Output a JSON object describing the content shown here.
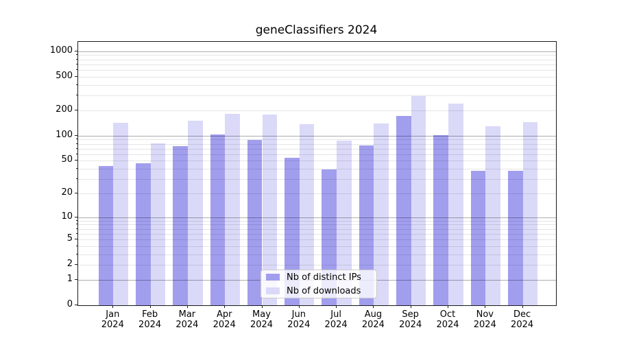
{
  "title": "geneClassifiers 2024",
  "chart_data": {
    "type": "bar",
    "title": "geneClassifiers 2024",
    "xlabel": "",
    "ylabel": "",
    "categories": [
      "Jan 2024",
      "Feb 2024",
      "Mar 2024",
      "Apr 2024",
      "May 2024",
      "Jun 2024",
      "Jul 2024",
      "Aug 2024",
      "Sep 2024",
      "Oct 2024",
      "Nov 2024",
      "Dec 2024"
    ],
    "category_months": [
      "Jan",
      "Feb",
      "Mar",
      "Apr",
      "May",
      "Jun",
      "Jul",
      "Aug",
      "Sep",
      "Oct",
      "Nov",
      "Dec"
    ],
    "category_year": "2024",
    "series": [
      {
        "name": "Nb of distinct IPs",
        "color": "#a19eee",
        "values": [
          43,
          47,
          75,
          103,
          88,
          54,
          39,
          77,
          170,
          102,
          38,
          38
        ]
      },
      {
        "name": "Nb of downloads",
        "color": "#dad9f8",
        "values": [
          143,
          81,
          150,
          180,
          178,
          137,
          87,
          140,
          295,
          240,
          130,
          146
        ]
      }
    ],
    "yscale": "log1p",
    "yticks": [
      0,
      1,
      2,
      5,
      10,
      20,
      50,
      100,
      200,
      500,
      1000
    ],
    "ylim": [
      0,
      1280
    ],
    "grid": true,
    "grid_major_values": [
      1,
      10,
      100,
      1000
    ],
    "legend_position": "lower center",
    "colors": {
      "bar_distinct_ips": "#a19eee",
      "bar_downloads": "#dad9f8",
      "grid_major": "#b2b2b2",
      "grid_minor": "#e6e6e6",
      "spine": "#1a1a1a"
    }
  }
}
